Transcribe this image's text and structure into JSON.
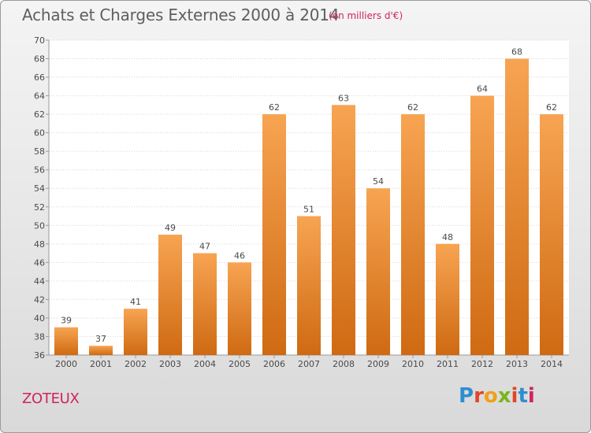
{
  "header": {
    "title": "Achats et Charges Externes 2000 à 2014",
    "subtitle": "(en milliers d'€)"
  },
  "footer": {
    "commune": "ZOTEUX",
    "logo": "Proxiti",
    "logo_colors": [
      "#2e8ecf",
      "#e0452a",
      "#f0a019",
      "#7ab51d",
      "#e0452a",
      "#2e8ecf",
      "#d0245a"
    ]
  },
  "colors": {
    "bar_top": "#f7a452",
    "bar_bottom": "#cf6a12",
    "title": "#5e5e5e",
    "accent": "#d0245a"
  },
  "chart_data": {
    "type": "bar",
    "categories": [
      "2000",
      "2001",
      "2002",
      "2003",
      "2004",
      "2005",
      "2006",
      "2007",
      "2008",
      "2009",
      "2010",
      "2011",
      "2012",
      "2013",
      "2014"
    ],
    "values": [
      39,
      37,
      41,
      49,
      47,
      46,
      62,
      51,
      63,
      54,
      62,
      48,
      64,
      68,
      62
    ],
    "ylim": [
      36,
      70
    ],
    "yticks": [
      36,
      38,
      40,
      42,
      44,
      46,
      48,
      50,
      52,
      54,
      56,
      58,
      60,
      62,
      64,
      66,
      68,
      70
    ],
    "grid": true,
    "title": "Achats et Charges Externes 2000 à 2014",
    "xlabel": "",
    "ylabel": ""
  }
}
